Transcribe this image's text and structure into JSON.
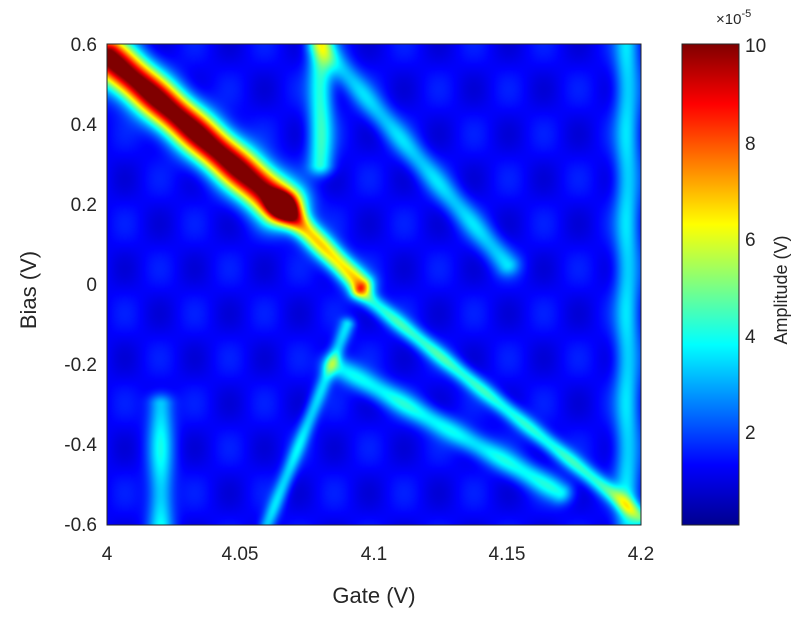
{
  "chart_data": {
    "type": "heatmap",
    "title": "",
    "xlabel": "Gate (V)",
    "ylabel": "Bias (V)",
    "xlim": [
      4.0,
      4.2
    ],
    "ylim": [
      -0.6,
      0.6
    ],
    "x_ticks": [
      "4",
      "4.05",
      "4.1",
      "4.15",
      "4.2"
    ],
    "y_ticks": [
      "0.6",
      "0.4",
      "0.2",
      "0",
      "-0.2",
      "-0.4",
      "-0.6"
    ],
    "colorbar": {
      "label": "Amplitude (V)",
      "multiplier": "×10",
      "exponent": "-5",
      "range": [
        0,
        10
      ],
      "ticks": [
        "10",
        "8",
        "6",
        "4",
        "2"
      ],
      "colormap": "jet"
    },
    "background_level": 1.2,
    "features": [
      {
        "name": "main-resonance",
        "from": [
          4.0,
          0.57
        ],
        "to": [
          4.065,
          0.2
        ],
        "amplitude": 9.8,
        "width_v": 0.035
      },
      {
        "name": "main-resonance-tail",
        "from": [
          4.065,
          0.2
        ],
        "to": [
          4.095,
          0.0
        ],
        "amplitude": 5.5,
        "width_v": 0.02
      },
      {
        "name": "lower-branch",
        "from": [
          4.095,
          -0.02
        ],
        "to": [
          4.2,
          -0.58
        ],
        "amplitude": 3.0,
        "width_v": 0.015
      },
      {
        "name": "lower-branch-2",
        "from": [
          4.085,
          -0.2
        ],
        "to": [
          4.17,
          -0.52
        ],
        "amplitude": 2.6,
        "width_v": 0.02
      },
      {
        "name": "diamond-edge-1",
        "from": [
          4.06,
          -0.6
        ],
        "to": [
          4.09,
          -0.1
        ],
        "amplitude": 2.2,
        "width_v": 0.012
      },
      {
        "name": "diamond-edge-2",
        "from": [
          4.08,
          0.6
        ],
        "to": [
          4.15,
          0.05
        ],
        "amplitude": 2.0,
        "width_v": 0.02
      },
      {
        "name": "vertical-line-1",
        "from": [
          4.08,
          0.6
        ],
        "to": [
          4.08,
          0.3
        ],
        "amplitude": 3.0,
        "width_v": 0.02
      },
      {
        "name": "vertical-line-2",
        "from": [
          4.195,
          0.6
        ],
        "to": [
          4.195,
          -0.6
        ],
        "amplitude": 2.2,
        "width_v": 0.02
      },
      {
        "name": "vertical-line-3",
        "from": [
          4.02,
          -0.6
        ],
        "to": [
          4.02,
          -0.3
        ],
        "amplitude": 2.4,
        "width_v": 0.02
      }
    ]
  }
}
